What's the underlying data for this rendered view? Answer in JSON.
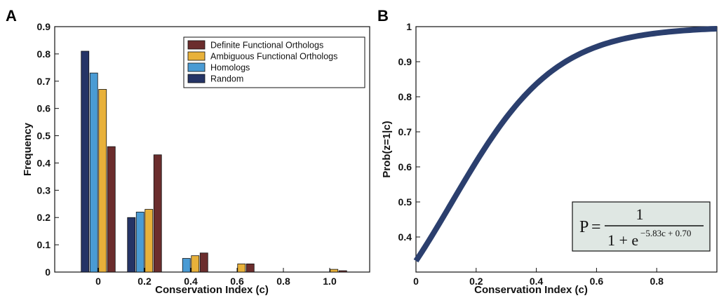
{
  "panels": [
    {
      "letter": "A"
    },
    {
      "letter": "B"
    }
  ],
  "chart_data": [
    {
      "type": "bar",
      "title": "",
      "xlabel": "Conservation Index (c)",
      "ylabel": "Frequency",
      "categories": [
        "0",
        "0.2",
        "0.4",
        "0.6",
        "0.8",
        "1.0"
      ],
      "ylim": [
        0,
        0.9
      ],
      "yticks": [
        "0",
        "0.1",
        "0.2",
        "0.3",
        "0.4",
        "0.5",
        "0.6",
        "0.7",
        "0.8",
        "0.9"
      ],
      "legend_position": "top-right",
      "series": [
        {
          "name": "Random",
          "color": "#253466",
          "values": [
            0.81,
            0.2,
            0.0,
            0.0,
            0.0,
            0.0
          ]
        },
        {
          "name": "Homologs",
          "color": "#4a9bd4",
          "values": [
            0.73,
            0.22,
            0.05,
            0.0,
            0.0,
            0.0
          ]
        },
        {
          "name": "Ambiguous Functional Orthologs",
          "color": "#e8b13a",
          "values": [
            0.67,
            0.23,
            0.06,
            0.03,
            0.0,
            0.01
          ]
        },
        {
          "name": "Definite Functional Orthologs",
          "color": "#6b2d2d",
          "values": [
            0.46,
            0.43,
            0.07,
            0.03,
            0.0,
            0.005
          ]
        }
      ],
      "legend_order": [
        "Definite Functional Orthologs",
        "Ambiguous Functional Orthologs",
        "Homologs",
        "Random"
      ]
    },
    {
      "type": "line",
      "title": "",
      "xlabel": "Conservation Index (c)",
      "ylabel": "Prob(z=1|c)",
      "xlim": [
        0,
        1
      ],
      "ylim": [
        0.3,
        1
      ],
      "xticks": [
        "0",
        "0.2",
        "0.4",
        "0.6",
        "0.8"
      ],
      "yticks": [
        "0.4",
        "0.5",
        "0.6",
        "0.7",
        "0.8",
        "0.9",
        "1"
      ],
      "line_color": "#2b3f6e",
      "function": {
        "a": 5.83,
        "b": -0.7
      },
      "formula": {
        "lhs": "P",
        "equals": "=",
        "numerator": "1",
        "denominator_base": "1 + e",
        "exponent": "−5.83c + 0.70"
      },
      "formula_box_color": "#dfe7e3"
    }
  ]
}
